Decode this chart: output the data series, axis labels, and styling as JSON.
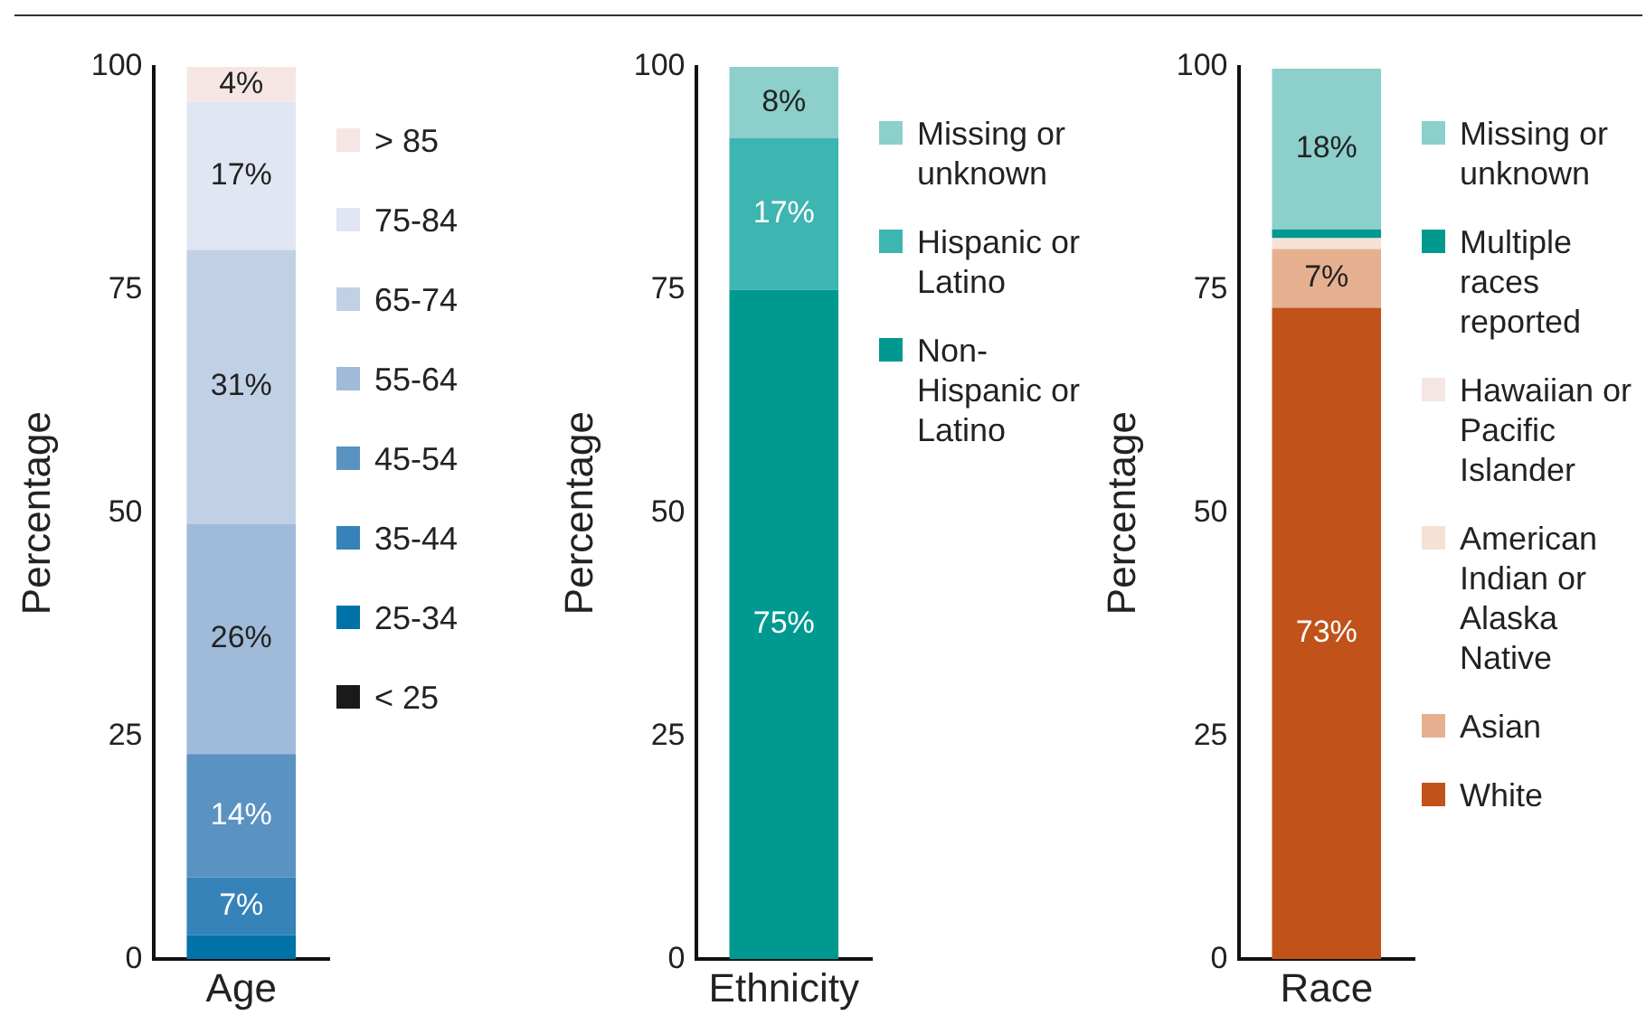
{
  "chart_data": [
    {
      "type": "bar",
      "stacked": true,
      "categories": [
        "Age"
      ],
      "ylabel": "Percentage",
      "ylim": [
        0,
        100
      ],
      "yticks": [
        0,
        25,
        50,
        75,
        100
      ],
      "grid": false,
      "legend": "right",
      "series": [
        {
          "name": "< 25",
          "color": "#1a1a1a",
          "values": [
            0
          ],
          "value_labels": [
            null
          ]
        },
        {
          "name": "25-34",
          "color": "#0072a8",
          "values": [
            2.7
          ],
          "value_labels": [
            null
          ]
        },
        {
          "name": "35-44",
          "color": "#3583b8",
          "values": [
            6.5
          ],
          "value_labels": [
            "7%"
          ]
        },
        {
          "name": "45-54",
          "color": "#5a92c2",
          "values": [
            13.8
          ],
          "value_labels": [
            "14%"
          ]
        },
        {
          "name": "55-64",
          "color": "#a0bad9",
          "values": [
            25.8
          ],
          "value_labels": [
            "26%"
          ]
        },
        {
          "name": "65-74",
          "color": "#c0d1e5",
          "values": [
            30.7
          ],
          "value_labels": [
            "31%"
          ]
        },
        {
          "name": "75-84",
          "color": "#e0e6f2",
          "values": [
            16.6
          ],
          "value_labels": [
            "17%"
          ]
        },
        {
          "name": "> 85",
          "color": "#f5e6e4",
          "values": [
            3.9
          ],
          "value_labels": [
            "4%"
          ]
        }
      ]
    },
    {
      "type": "bar",
      "stacked": true,
      "categories": [
        "Ethnicity"
      ],
      "ylabel": "Percentage",
      "ylim": [
        0,
        100
      ],
      "yticks": [
        0,
        25,
        50,
        75,
        100
      ],
      "grid": false,
      "legend": "right",
      "series": [
        {
          "name": "Non-Hispanic or Latino",
          "color": "#009990",
          "values": [
            75
          ],
          "value_labels": [
            "75%"
          ]
        },
        {
          "name": "Hispanic or Latino",
          "color": "#3db5b0",
          "values": [
            17
          ],
          "value_labels": [
            "17%"
          ]
        },
        {
          "name": "Missing or unknown",
          "color": "#8ccfcb",
          "values": [
            8
          ],
          "value_labels": [
            "8%"
          ]
        }
      ]
    },
    {
      "type": "bar",
      "stacked": true,
      "categories": [
        "Race"
      ],
      "ylabel": "Percentage",
      "ylim": [
        0,
        100
      ],
      "yticks": [
        0,
        25,
        50,
        75,
        100
      ],
      "grid": false,
      "legend": "right",
      "series": [
        {
          "name": "White",
          "color": "#c0521a",
          "values": [
            73
          ],
          "value_labels": [
            "73%"
          ]
        },
        {
          "name": "Asian",
          "color": "#e6b090",
          "values": [
            6.6
          ],
          "value_labels": [
            "7%"
          ]
        },
        {
          "name": "American Indian or Alaska Native",
          "color": "#f5e1d6",
          "values": [
            1.2
          ],
          "value_labels": [
            null
          ]
        },
        {
          "name": "Hawaiian or Pacific Islander",
          "color": "#f5e6e6",
          "values": [
            null
          ],
          "value_labels": [
            null
          ]
        },
        {
          "name": "Multiple races reported",
          "color": "#009990",
          "values": [
            1
          ],
          "value_labels": [
            null
          ]
        },
        {
          "name": "Missing or unknown",
          "color": "#8ccfcb",
          "values": [
            18
          ],
          "value_labels": [
            "18%"
          ]
        }
      ]
    }
  ]
}
